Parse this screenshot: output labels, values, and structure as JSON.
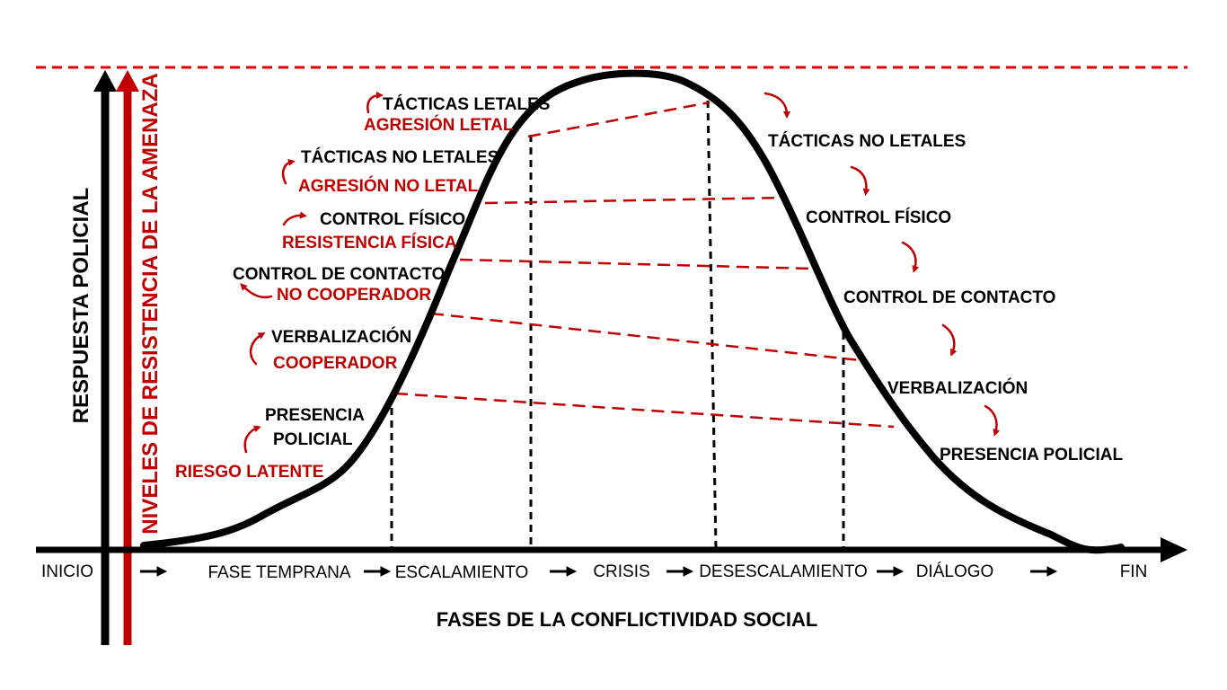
{
  "y_axis_labels": {
    "police_response": "RESPUESTA POLICIAL",
    "threat_resistance": "NIVELES DE RESISTENCIA DE LA AMENAZA"
  },
  "x_axis_title": "FASES DE LA CONFLICTIVIDAD SOCIAL",
  "phases": [
    "INICIO",
    "FASE TEMPRANA",
    "ESCALAMIENTO",
    "CRISIS",
    "DESESCALAMIENTO",
    "DIÁLOGO",
    "FIN"
  ],
  "escalation_levels": [
    {
      "response": "PRESENCIA POLICIAL",
      "response_line1": "PRESENCIA",
      "response_line2": "POLICIAL",
      "resistance": "RIESGO LATENTE"
    },
    {
      "response": "VERBALIZACIÓN",
      "resistance": "COOPERADOR"
    },
    {
      "response": "CONTROL DE CONTACTO",
      "resistance": "NO COOPERADOR"
    },
    {
      "response": "CONTROL FÍSICO",
      "resistance": "RESISTENCIA FÍSICA"
    },
    {
      "response": "TÁCTICAS NO LETALES",
      "resistance": "AGRESIÓN NO LETAL"
    },
    {
      "response": "TÁCTICAS LETALES",
      "resistance": "AGRESIÓN LETAL"
    }
  ],
  "deescalation_levels": [
    "TÁCTICAS NO LETALES",
    "CONTROL FÍSICO",
    "CONTROL DE CONTACTO",
    "VERBALIZACIÓN",
    "PRESENCIA POLICIAL"
  ],
  "colors": {
    "primary": "#000000",
    "accent": "#c00000",
    "background": "#ffffff"
  }
}
